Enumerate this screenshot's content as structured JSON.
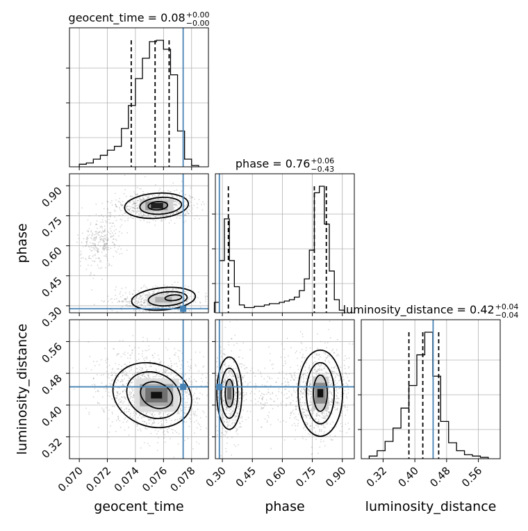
{
  "chart_data": {
    "type": "scatter",
    "subtype": "corner-plot",
    "parameters": [
      "geocent_time",
      "phase",
      "luminosity_distance"
    ],
    "titles": [
      {
        "text": "geocent_time = 0.08",
        "sup": "+0.00",
        "sub": "−0.00"
      },
      {
        "text": "phase = 0.76",
        "sup": "+0.06",
        "sub": "−0.43"
      },
      {
        "text": "luminosity_distance = 0.42",
        "sup": "+0.04",
        "sub": "−0.04"
      }
    ],
    "axis_labels": {
      "geocent_time": "geocent_time",
      "phase": "phase",
      "luminosity_distance": "luminosity_distance"
    },
    "ranges": {
      "geocent_time": [
        0.0693,
        0.0792
      ],
      "phase": [
        0.265,
        0.96
      ],
      "luminosity_distance": [
        0.265,
        0.615
      ]
    },
    "ticks": {
      "geocent_time": [
        "0.070",
        "0.072",
        "0.074",
        "0.076",
        "0.078"
      ],
      "phase": [
        "0.30",
        "0.45",
        "0.60",
        "0.75",
        "0.90"
      ],
      "luminosity_distance": [
        "0.32",
        "0.40",
        "0.48",
        "0.56"
      ]
    },
    "truths": {
      "geocent_time": 0.0774,
      "phase": 0.285,
      "luminosity_distance": 0.446
    },
    "quantiles": {
      "geocent_time": [
        0.0737,
        0.0754,
        0.0764
      ],
      "phase": [
        0.33,
        0.76,
        0.82
      ],
      "luminosity_distance": [
        0.385,
        0.42,
        0.46
      ]
    },
    "histograms": {
      "geocent_time": {
        "edges": [
          0.07,
          0.0705,
          0.071,
          0.0715,
          0.072,
          0.0725,
          0.073,
          0.0735,
          0.074,
          0.0745,
          0.075,
          0.0755,
          0.076,
          0.0765,
          0.077,
          0.0775,
          0.078,
          0.0785
        ],
        "counts": [
          2,
          3,
          6,
          9,
          13,
          16,
          30,
          48,
          69,
          85,
          98,
          99,
          92,
          72,
          28,
          6,
          1
        ]
      },
      "phase": {
        "edges": [
          0.26,
          0.285,
          0.31,
          0.335,
          0.36,
          0.385,
          0.41,
          0.435,
          0.46,
          0.485,
          0.51,
          0.535,
          0.56,
          0.585,
          0.61,
          0.635,
          0.66,
          0.685,
          0.71,
          0.735,
          0.76,
          0.785,
          0.81,
          0.835,
          0.86,
          0.885,
          0.91
        ],
        "counts": [
          8,
          40,
          72,
          40,
          20,
          6,
          4,
          4,
          5,
          5,
          6,
          7,
          7,
          8,
          9,
          10,
          12,
          17,
          26,
          48,
          92,
          97,
          68,
          32,
          10,
          2
        ]
      },
      "luminosity_distance": {
        "edges": [
          0.285,
          0.305,
          0.325,
          0.345,
          0.365,
          0.385,
          0.405,
          0.425,
          0.445,
          0.465,
          0.485,
          0.505,
          0.525,
          0.545,
          0.565,
          0.585
        ],
        "counts": [
          2,
          6,
          13,
          23,
          38,
          55,
          78,
          95,
          62,
          28,
          12,
          6,
          3,
          2,
          1
        ]
      }
    },
    "colors": {
      "truth": "#4682b4",
      "contour": "#000000",
      "samples": "#888888",
      "grid": "#b0b0b0"
    },
    "grid": true
  }
}
